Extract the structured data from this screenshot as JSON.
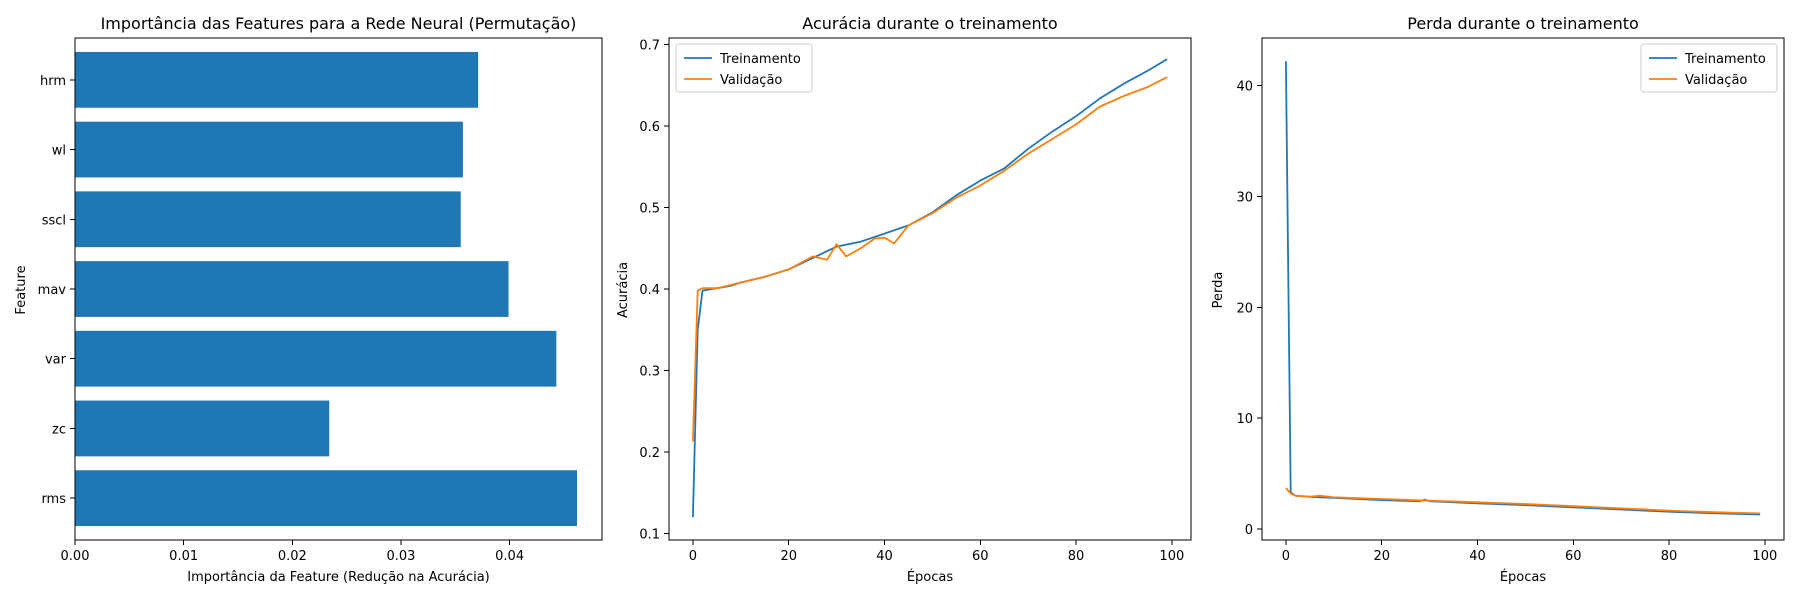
{
  "chart_data": [
    {
      "type": "bar",
      "orientation": "horizontal",
      "title": "Importância das Features para a Rede Neural (Permutação)",
      "xlabel": "Importância da Feature (Redução na Acurácia)",
      "ylabel": "Feature",
      "categories": [
        "rms",
        "zc",
        "var",
        "mav",
        "sscl",
        "wl",
        "hrm"
      ],
      "values": [
        0.0462,
        0.0234,
        0.0443,
        0.0399,
        0.0355,
        0.0357,
        0.0371
      ],
      "xlim": [
        0,
        0.0485
      ],
      "xticks": [
        0.0,
        0.01,
        0.02,
        0.03,
        0.04
      ],
      "xtick_labels": [
        "0.00",
        "0.01",
        "0.02",
        "0.03",
        "0.04"
      ],
      "color": "#1f77b4",
      "grid": false
    },
    {
      "type": "line",
      "title": "Acurácia durante o treinamento",
      "xlabel": "Épocas",
      "ylabel": "Acurácia",
      "xlim": [
        -5,
        104
      ],
      "ylim": [
        0.092,
        0.708
      ],
      "xticks": [
        0,
        20,
        40,
        60,
        80,
        100
      ],
      "yticks": [
        0.1,
        0.2,
        0.3,
        0.4,
        0.5,
        0.6,
        0.7
      ],
      "legend_position": "upper-left",
      "grid": false,
      "series": [
        {
          "name": "Treinamento",
          "color": "#1f77b4",
          "x": [
            0,
            1,
            2,
            5,
            8,
            10,
            15,
            20,
            25,
            30,
            35,
            40,
            45,
            50,
            55,
            60,
            65,
            70,
            75,
            80,
            85,
            90,
            95,
            99
          ],
          "y": [
            0.12,
            0.35,
            0.398,
            0.401,
            0.404,
            0.408,
            0.415,
            0.424,
            0.438,
            0.452,
            0.458,
            0.468,
            0.478,
            0.494,
            0.515,
            0.533,
            0.548,
            0.572,
            0.593,
            0.612,
            0.634,
            0.652,
            0.668,
            0.682
          ]
        },
        {
          "name": "Validação",
          "color": "#ff7f0e",
          "x": [
            0,
            1,
            2,
            5,
            8,
            10,
            15,
            20,
            25,
            28,
            30,
            32,
            35,
            38,
            40,
            42,
            45,
            50,
            55,
            60,
            65,
            70,
            75,
            80,
            85,
            90,
            95,
            99
          ],
          "y": [
            0.213,
            0.398,
            0.401,
            0.401,
            0.405,
            0.408,
            0.415,
            0.424,
            0.44,
            0.436,
            0.455,
            0.44,
            0.45,
            0.462,
            0.463,
            0.456,
            0.478,
            0.493,
            0.512,
            0.527,
            0.545,
            0.566,
            0.584,
            0.602,
            0.624,
            0.637,
            0.648,
            0.66
          ]
        }
      ]
    },
    {
      "type": "line",
      "title": "Perda durante o treinamento",
      "xlabel": "Épocas",
      "ylabel": "Perda",
      "xlim": [
        -5,
        104
      ],
      "ylim": [
        -1.0,
        44.3
      ],
      "xticks": [
        0,
        20,
        40,
        60,
        80,
        100
      ],
      "yticks": [
        0,
        10,
        20,
        30,
        40
      ],
      "legend_position": "upper-right",
      "grid": false,
      "series": [
        {
          "name": "Treinamento",
          "color": "#1f77b4",
          "x": [
            0,
            1,
            2,
            5,
            10,
            20,
            28,
            29,
            30,
            40,
            50,
            60,
            70,
            80,
            90,
            99
          ],
          "y": [
            42.2,
            3.3,
            3.0,
            2.9,
            2.8,
            2.6,
            2.5,
            2.65,
            2.5,
            2.3,
            2.15,
            1.95,
            1.75,
            1.55,
            1.4,
            1.3
          ]
        },
        {
          "name": "Validação",
          "color": "#ff7f0e",
          "x": [
            0,
            1,
            2,
            5,
            7,
            10,
            20,
            30,
            40,
            50,
            60,
            70,
            80,
            90,
            99
          ],
          "y": [
            3.7,
            3.2,
            3.0,
            2.9,
            3.0,
            2.85,
            2.7,
            2.55,
            2.4,
            2.25,
            2.05,
            1.85,
            1.65,
            1.5,
            1.4
          ]
        }
      ]
    }
  ]
}
